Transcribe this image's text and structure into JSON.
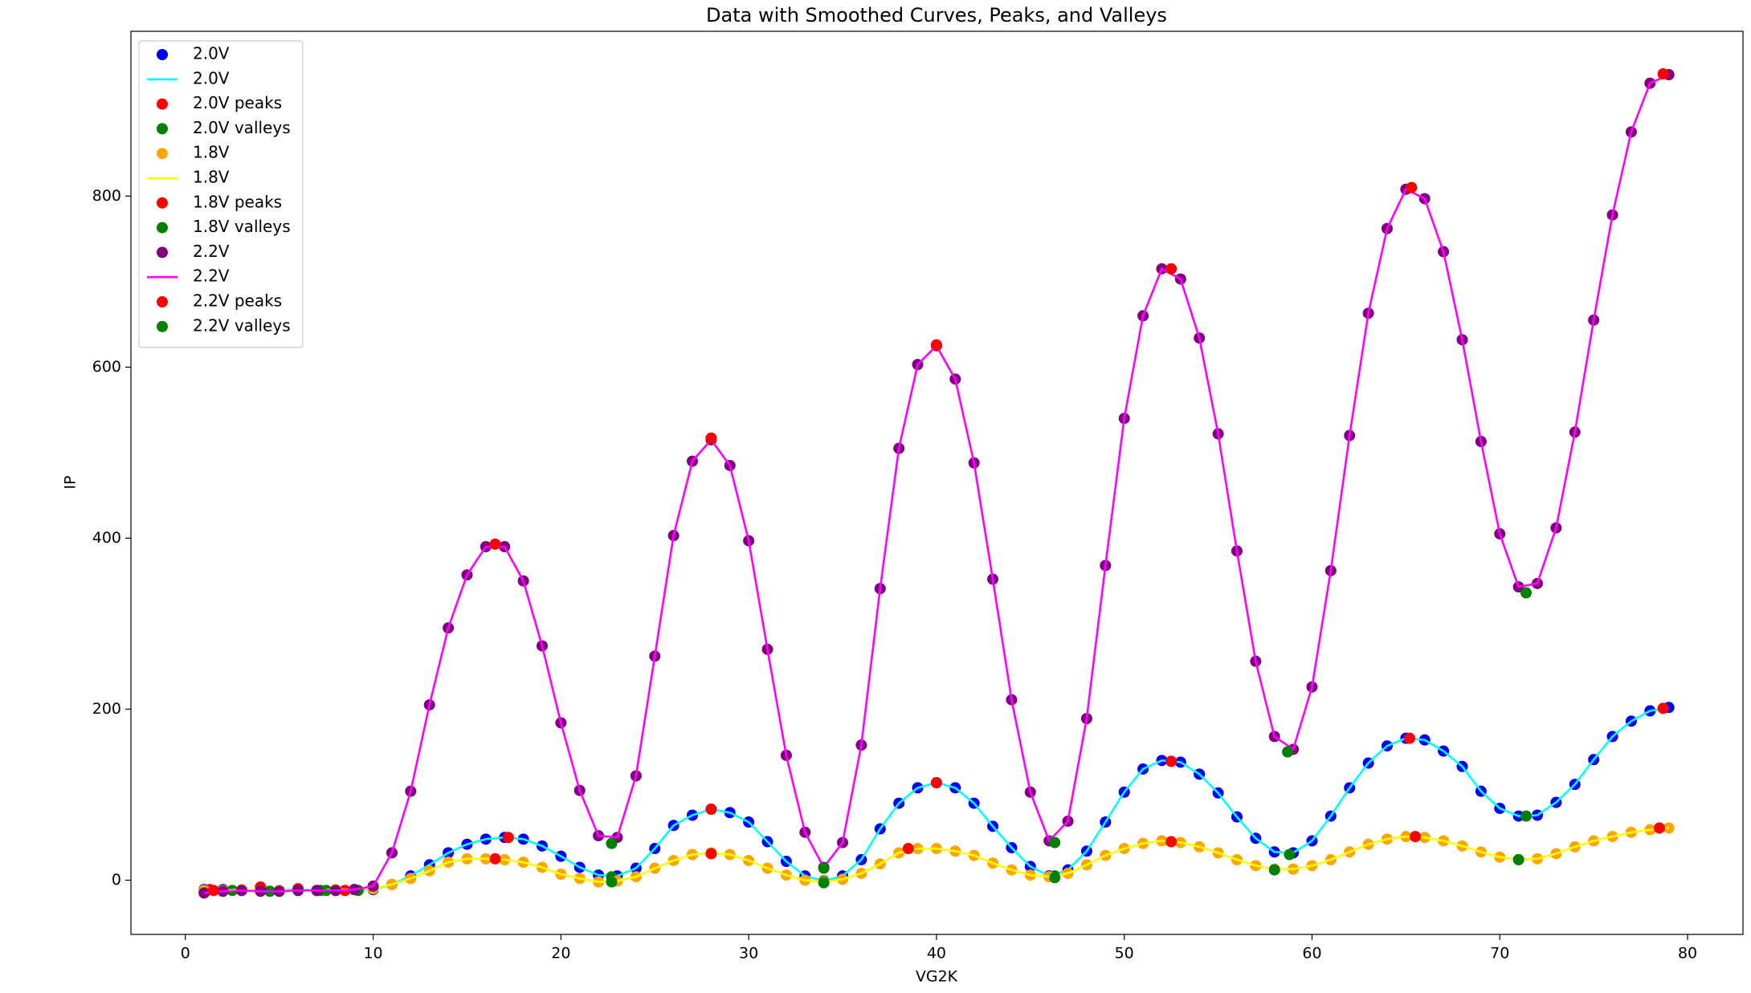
{
  "chart_data": {
    "type": "scatter-line",
    "title": "Data with Smoothed Curves, Peaks, and Valleys",
    "x_label": "VG2K",
    "y_label": "IP",
    "xlim": [
      -2.9,
      82.95
    ],
    "ylim": [
      -63.4,
      992.7
    ],
    "xticks": [
      0,
      10,
      20,
      30,
      40,
      50,
      60,
      70,
      80
    ],
    "yticks": [
      0,
      200,
      400,
      600,
      800
    ],
    "legend": "upper left",
    "x": [
      1,
      2,
      3,
      4,
      5,
      6,
      7,
      8,
      9,
      10,
      11,
      12,
      13,
      14,
      15,
      16,
      17,
      18,
      19,
      20,
      21,
      22,
      23,
      24,
      25,
      26,
      27,
      28,
      29,
      30,
      31,
      32,
      33,
      34,
      35,
      36,
      37,
      38,
      39,
      40,
      41,
      42,
      43,
      44,
      45,
      46,
      47,
      48,
      49,
      50,
      51,
      52,
      53,
      54,
      55,
      56,
      57,
      58,
      59,
      60,
      61,
      62,
      63,
      64,
      65,
      66,
      67,
      68,
      69,
      70,
      71,
      72,
      73,
      74,
      75,
      76,
      77,
      78,
      79
    ],
    "series": [
      {
        "name": "2.0V",
        "style": "scatter",
        "color": "#0000ff",
        "values": [
          -11,
          -11,
          -12,
          -12,
          -12,
          -11,
          -12,
          -12,
          -11,
          -11,
          -5,
          5,
          18,
          32,
          42,
          48,
          50,
          48,
          40,
          28,
          15,
          6,
          5,
          14,
          37,
          64,
          76,
          83,
          79,
          68,
          45,
          22,
          5,
          -1,
          5,
          24,
          60,
          90,
          108,
          114,
          108,
          90,
          63,
          38,
          16,
          5,
          12,
          34,
          68,
          103,
          130,
          140,
          138,
          124,
          102,
          74,
          49,
          33,
          32,
          46,
          75,
          108,
          137,
          157,
          166,
          164,
          151,
          133,
          104,
          84,
          75,
          76,
          91,
          112,
          141,
          168,
          186,
          198,
          202
        ]
      },
      {
        "name": "2.0V",
        "style": "line",
        "color": "#00ffff",
        "values": [
          -11,
          -11,
          -12,
          -12,
          -12,
          -11,
          -12,
          -12,
          -11,
          -11,
          -5,
          5,
          18,
          32,
          42,
          48,
          50,
          48,
          40,
          28,
          15,
          6,
          5,
          14,
          37,
          64,
          76,
          83,
          79,
          68,
          45,
          22,
          5,
          -1,
          5,
          24,
          60,
          90,
          108,
          114,
          108,
          90,
          63,
          38,
          16,
          5,
          12,
          34,
          68,
          103,
          130,
          140,
          138,
          124,
          102,
          74,
          49,
          33,
          32,
          46,
          75,
          108,
          137,
          157,
          166,
          164,
          151,
          133,
          104,
          84,
          75,
          76,
          91,
          112,
          141,
          168,
          186,
          198,
          202
        ]
      },
      {
        "name": "2.0V peaks",
        "style": "scatter",
        "color": "#ff0000",
        "x": [
          1.3,
          8.5,
          17.2,
          28,
          40,
          52.5,
          65.2,
          78.7
        ],
        "values": [
          -11,
          -12,
          50,
          83,
          114,
          139,
          166,
          201
        ]
      },
      {
        "name": "2.0V valleys",
        "style": "scatter",
        "color": "#008000",
        "x": [
          2.5,
          5,
          7.5,
          22.7,
          34,
          46.3,
          58.8,
          71.4
        ],
        "values": [
          -12,
          -13,
          -12,
          4,
          -1,
          5,
          30,
          75
        ]
      },
      {
        "name": "1.8V",
        "style": "scatter",
        "color": "#ffa500",
        "values": [
          -12,
          -12,
          -11,
          -12,
          -12,
          -12,
          -12,
          -11,
          -11,
          -10,
          -5,
          2,
          11,
          21,
          25,
          25,
          24,
          21,
          15,
          7,
          2,
          -2,
          -1,
          4,
          14,
          23,
          30,
          32,
          30,
          23,
          14,
          6,
          0,
          -2,
          1,
          8,
          19,
          32,
          37,
          37,
          34,
          29,
          20,
          12,
          6,
          4,
          8,
          18,
          29,
          37,
          43,
          46,
          44,
          39,
          32,
          24,
          17,
          13,
          13,
          17,
          24,
          33,
          42,
          48,
          51,
          50,
          46,
          40,
          33,
          27,
          24,
          25,
          31,
          39,
          46,
          51,
          56,
          59,
          61
        ]
      },
      {
        "name": "1.8V",
        "style": "line",
        "color": "#ffff00",
        "values": [
          -12,
          -12,
          -11,
          -12,
          -12,
          -12,
          -12,
          -11,
          -11,
          -10,
          -5,
          2,
          11,
          21,
          25,
          25,
          24,
          21,
          15,
          7,
          2,
          -2,
          -1,
          4,
          14,
          23,
          30,
          32,
          30,
          23,
          14,
          6,
          0,
          -2,
          1,
          8,
          19,
          32,
          37,
          37,
          34,
          29,
          20,
          12,
          6,
          4,
          8,
          18,
          29,
          37,
          43,
          46,
          44,
          39,
          32,
          24,
          17,
          13,
          13,
          17,
          24,
          33,
          42,
          48,
          51,
          50,
          46,
          40,
          33,
          27,
          24,
          25,
          31,
          39,
          46,
          51,
          56,
          59,
          61
        ]
      },
      {
        "name": "1.8V peaks",
        "style": "scatter",
        "color": "#ff0000",
        "x": [
          4,
          6,
          16.5,
          28,
          38.5,
          52.5,
          65.5,
          78.5
        ],
        "values": [
          -8,
          -10,
          25,
          31,
          37,
          45,
          51,
          61
        ]
      },
      {
        "name": "1.8V valleys",
        "style": "scatter",
        "color": "#008000",
        "x": [
          4.5,
          7.2,
          9.2,
          22.7,
          34,
          46.3,
          58,
          71
        ],
        "values": [
          -13,
          -12,
          -12,
          -2,
          -3,
          3,
          12,
          24
        ]
      },
      {
        "name": "2.2V",
        "style": "scatter",
        "color": "#800080",
        "values": [
          -15,
          -13,
          -12,
          -13,
          -13,
          -12,
          -12,
          -12,
          -11,
          -7,
          32,
          104,
          205,
          295,
          357,
          390,
          390,
          350,
          274,
          184,
          105,
          52,
          50,
          122,
          262,
          403,
          490,
          515,
          485,
          397,
          270,
          146,
          56,
          15,
          44,
          158,
          341,
          505,
          603,
          625,
          586,
          488,
          352,
          211,
          103,
          46,
          69,
          189,
          368,
          540,
          660,
          715,
          703,
          634,
          522,
          385,
          256,
          168,
          153,
          226,
          362,
          520,
          663,
          762,
          808,
          797,
          735,
          632,
          513,
          405,
          343,
          347,
          412,
          524,
          655,
          778,
          875,
          932,
          942
        ]
      },
      {
        "name": "2.2V",
        "style": "line",
        "color": "#ff00ff",
        "values": [
          -15,
          -13,
          -12,
          -13,
          -13,
          -12,
          -12,
          -12,
          -11,
          -7,
          32,
          104,
          205,
          295,
          357,
          390,
          390,
          350,
          274,
          184,
          105,
          52,
          50,
          122,
          262,
          403,
          490,
          515,
          485,
          397,
          270,
          146,
          56,
          15,
          44,
          158,
          341,
          505,
          603,
          625,
          586,
          488,
          352,
          211,
          103,
          46,
          69,
          189,
          368,
          540,
          660,
          715,
          703,
          634,
          522,
          385,
          256,
          168,
          153,
          226,
          362,
          520,
          663,
          762,
          808,
          797,
          735,
          632,
          513,
          405,
          343,
          347,
          412,
          524,
          655,
          778,
          875,
          932,
          942
        ]
      },
      {
        "name": "2.2V peaks",
        "style": "scatter",
        "color": "#ff0000",
        "x": [
          1.5,
          16.5,
          28,
          40,
          52.5,
          65.3,
          78.7
        ],
        "values": [
          -12,
          393,
          517,
          626,
          715,
          810,
          943
        ]
      },
      {
        "name": "2.2V valleys",
        "style": "scatter",
        "color": "#008000",
        "x": [
          22.7,
          34,
          46.3,
          58.7,
          71.4
        ],
        "values": [
          43,
          14,
          44,
          150,
          336
        ]
      }
    ]
  }
}
